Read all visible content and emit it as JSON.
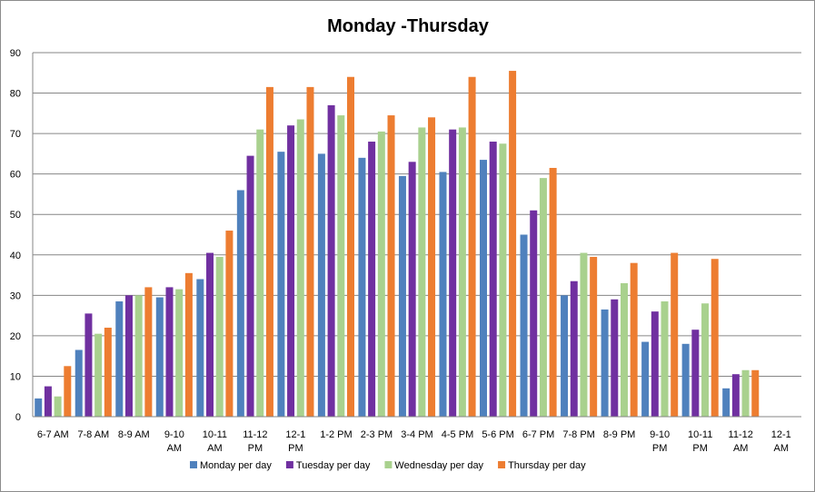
{
  "chart_data": {
    "type": "bar",
    "title": "Monday -Thursday",
    "xlabel": "",
    "ylabel": "",
    "ylim": [
      0,
      90
    ],
    "yticks": [
      0,
      10,
      20,
      30,
      40,
      50,
      60,
      70,
      80,
      90
    ],
    "grid": true,
    "legend_position": "bottom",
    "categories": [
      [
        "6-7 AM"
      ],
      [
        "7-8 AM"
      ],
      [
        "8-9 AM"
      ],
      [
        "9-10",
        "AM"
      ],
      [
        "10-11",
        "AM"
      ],
      [
        "11-12",
        "PM"
      ],
      [
        "12-1",
        "PM"
      ],
      [
        "1-2 PM"
      ],
      [
        "2-3 PM"
      ],
      [
        "3-4 PM"
      ],
      [
        "4-5 PM"
      ],
      [
        "5-6 PM"
      ],
      [
        "6-7 PM"
      ],
      [
        "7-8 PM"
      ],
      [
        "8-9 PM"
      ],
      [
        "9-10",
        "PM"
      ],
      [
        "10-11",
        "PM"
      ],
      [
        "11-12",
        "AM"
      ],
      [
        "12-1",
        "AM"
      ]
    ],
    "series": [
      {
        "name": "Monday per day",
        "color": "#4f81bd",
        "values": [
          4.5,
          16.5,
          28.5,
          29.5,
          34,
          56,
          65.5,
          65,
          64,
          59.5,
          60.5,
          63.5,
          45,
          30,
          26.5,
          18.5,
          18,
          7,
          0
        ]
      },
      {
        "name": "Tuesday per day",
        "color": "#7030a0",
        "values": [
          7.5,
          25.5,
          30,
          32,
          40.5,
          64.5,
          72,
          77,
          68,
          63,
          71,
          68,
          51,
          33.5,
          29,
          26,
          21.5,
          10.5,
          0
        ]
      },
      {
        "name": "Wednesday per day",
        "color": "#a9d18e",
        "values": [
          5,
          20.5,
          30,
          31.5,
          39.5,
          71,
          73.5,
          74.5,
          70.5,
          71.5,
          71.5,
          67.5,
          59,
          40.5,
          33,
          28.5,
          28,
          11.5,
          0
        ]
      },
      {
        "name": "Thursday per day",
        "color": "#ed7d31",
        "values": [
          12.5,
          22,
          32,
          35.5,
          46,
          81.5,
          81.5,
          84,
          74.5,
          74,
          84,
          85.5,
          61.5,
          39.5,
          38,
          40.5,
          39,
          11.5,
          0
        ]
      }
    ]
  }
}
